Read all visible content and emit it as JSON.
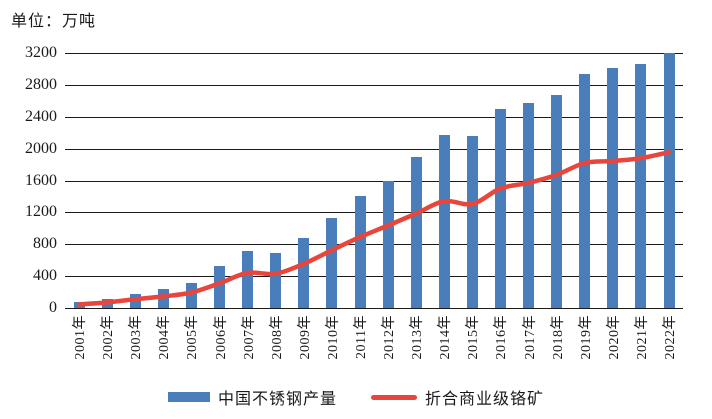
{
  "unit_label": "单位：万吨",
  "colors": {
    "bar": "#4A7EBB",
    "line": "#E8463C",
    "grid": "#1A1A1A",
    "axis": "#1A1A1A",
    "text": "#1A1A1A",
    "background": "#FFFFFF"
  },
  "chart_data": {
    "type": "bar",
    "subtype": "bar-with-line-overlay",
    "title": "",
    "unit": "万吨",
    "xlabel": "",
    "ylabel": "",
    "ylim": [
      0,
      3200
    ],
    "ytick_interval": 400,
    "yticks": [
      0,
      400,
      800,
      1200,
      1600,
      2000,
      2400,
      2800,
      3200
    ],
    "grid": true,
    "legend_position": "bottom",
    "categories": [
      "2001年",
      "2002年",
      "2003年",
      "2004年",
      "2005年",
      "2006年",
      "2007年",
      "2008年",
      "2009年",
      "2010年",
      "2011年",
      "2012年",
      "2013年",
      "2014年",
      "2015年",
      "2016年",
      "2017年",
      "2018年",
      "2019年",
      "2020年",
      "2021年",
      "2022年"
    ],
    "series": [
      {
        "name": "中国不锈钢产量",
        "type": "bar",
        "color": "#4A7EBB",
        "values": [
          73,
          114,
          178,
          236,
          316,
          530,
          720,
          694,
          880,
          1125,
          1400,
          1600,
          1900,
          2170,
          2156,
          2494,
          2577,
          2671,
          2940,
          3014,
          3063,
          3198
        ]
      },
      {
        "name": "折合商业级铬矿",
        "type": "line",
        "color": "#E8463C",
        "values": [
          45,
          70,
          110,
          145,
          195,
          310,
          440,
          430,
          555,
          725,
          890,
          1035,
          1185,
          1340,
          1305,
          1500,
          1570,
          1670,
          1820,
          1845,
          1880,
          1955
        ]
      }
    ]
  },
  "legend": {
    "items": [
      {
        "label": "中国不锈钢产量",
        "swatch": "bar"
      },
      {
        "label": "折合商业级铬矿",
        "swatch": "line"
      }
    ]
  }
}
